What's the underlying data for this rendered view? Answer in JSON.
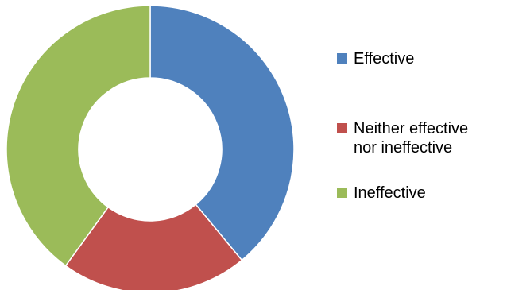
{
  "chart_data": {
    "type": "pie",
    "donut": true,
    "categories": [
      "Effective",
      "Neither effective nor ineffective",
      "Ineffective"
    ],
    "values": [
      39,
      21,
      40
    ],
    "colors": [
      "#4F81BD",
      "#C0504D",
      "#9BBB59"
    ],
    "legend": {
      "placement": "right",
      "labels": [
        "Effective",
        "Neither effective\nnor ineffective",
        "Ineffective"
      ]
    }
  }
}
